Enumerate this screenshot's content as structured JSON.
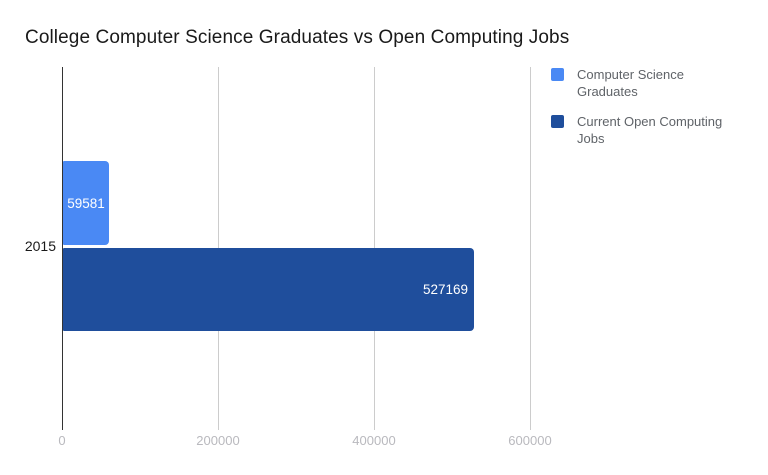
{
  "chart_data": {
    "type": "bar",
    "orientation": "horizontal",
    "title": "College Computer Science Graduates vs Open Computing Jobs",
    "categories": [
      "2015"
    ],
    "series": [
      {
        "name": "Computer Science Graduates",
        "values": [
          59581
        ],
        "color": "#4a89f4"
      },
      {
        "name": "Current Open Computing Jobs",
        "values": [
          527169
        ],
        "color": "#1f4e9c"
      }
    ],
    "xlabel": "",
    "ylabel": "",
    "x_ticks": [
      0,
      200000,
      400000,
      600000
    ],
    "xlim": [
      0,
      820000
    ],
    "grid": "vertical-gridlines-on",
    "legend_position": "right",
    "value_labels": "inside-bars-white"
  },
  "style_colors": {
    "axis_line": "#333333",
    "gridline": "#cccccc",
    "tick_label_text": "#b9b9be",
    "legend_text": "#5f6368",
    "title_text": "#1a1a1a",
    "bar_value_text": "#ffffff",
    "background": "#ffffff"
  }
}
